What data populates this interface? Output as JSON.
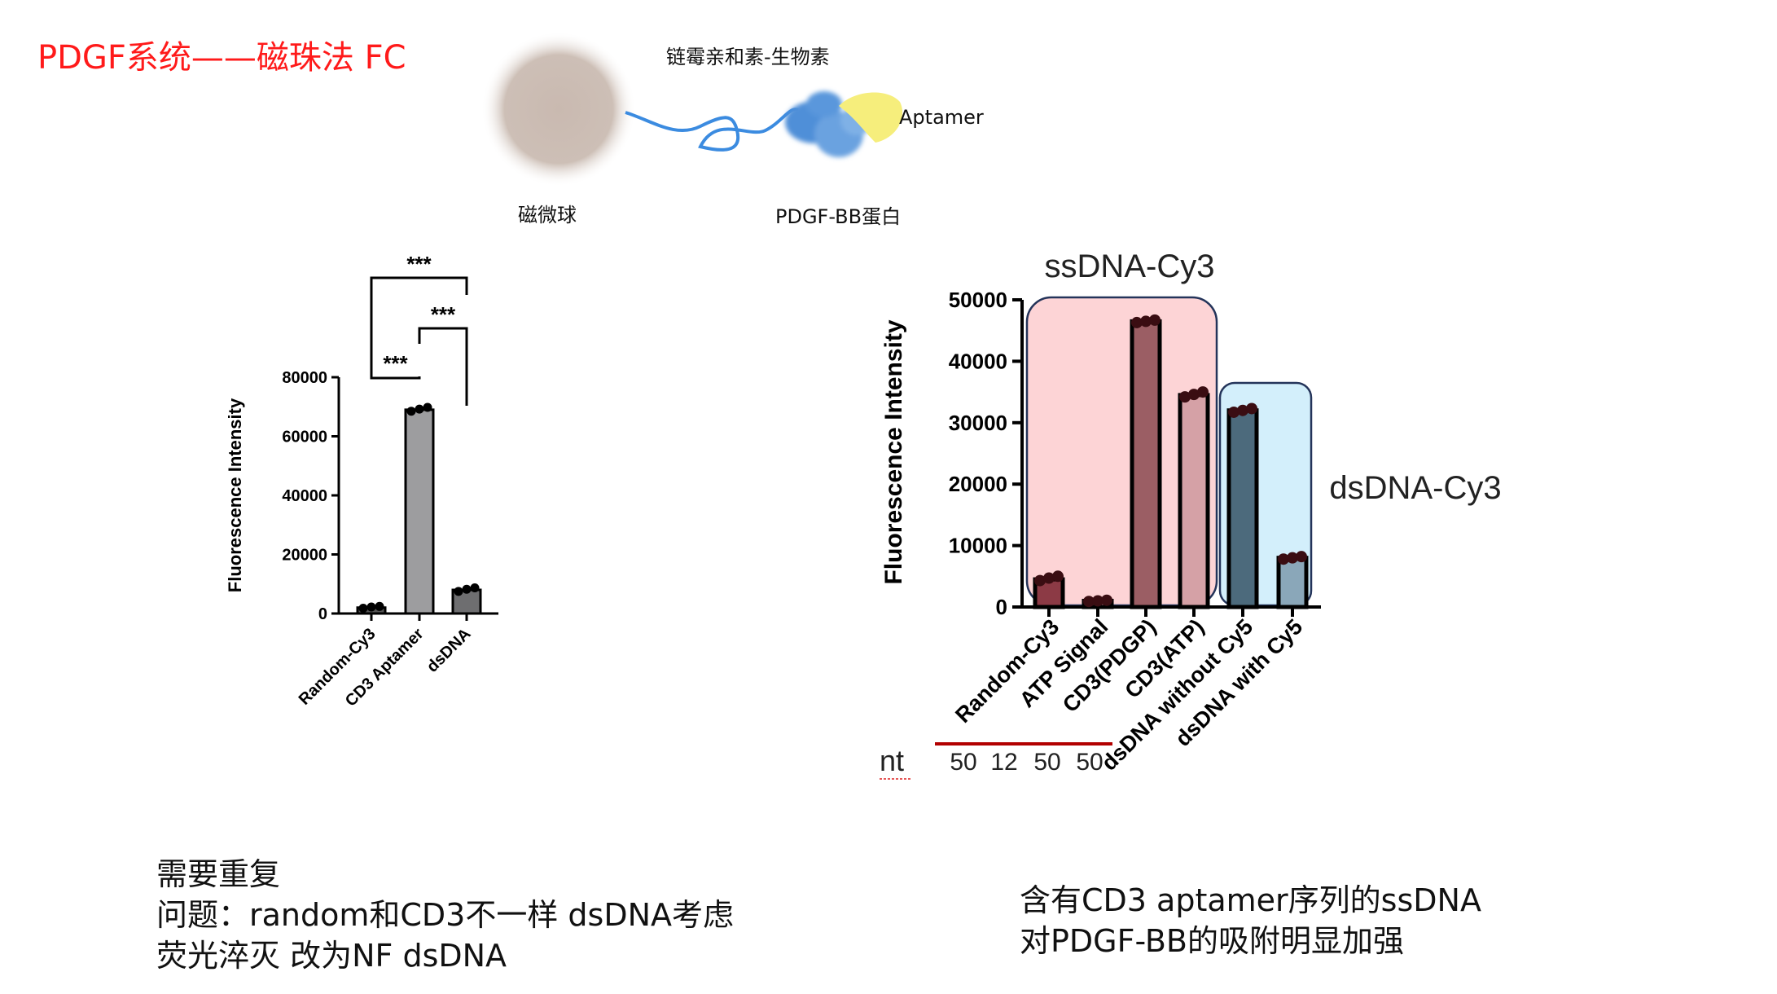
{
  "slide": {
    "title": "PDGF系统——磁珠法 FC",
    "diagram": {
      "label_streptavidin": "链霉亲和素-生物素",
      "label_aptamer": "Aptamer",
      "label_bead": "磁微球",
      "label_protein": "PDGF-BB蛋白"
    },
    "notes_left": [
      "需要重复",
      "问题：random和CD3不一样 dsDNA考虑",
      "荧光淬灭 改为NF dsDNA"
    ],
    "notes_right": [
      "含有CD3 aptamer序列的ssDNA",
      "对PDGF-BB的吸附明显加强"
    ]
  },
  "chart_data": [
    {
      "type": "bar",
      "title": "",
      "ylabel": "Fluorescence Intensity",
      "xlabel": "",
      "categories": [
        "Random-Cy3",
        "CD3 Aptamer",
        "dsDNA"
      ],
      "values": [
        2000,
        69000,
        8000
      ],
      "points": [
        [
          1800,
          2200,
          2400
        ],
        [
          68500,
          69200,
          69800
        ],
        [
          7500,
          8200,
          8700
        ]
      ],
      "colors": [
        "#555555",
        "#9d9d9f",
        "#6e6e70"
      ],
      "ylim": [
        0,
        80000
      ],
      "yticks": [
        0,
        20000,
        40000,
        60000,
        80000
      ],
      "significance": [
        {
          "from": 0,
          "to": 1,
          "label": "***"
        },
        {
          "from": 1,
          "to": 2,
          "label": "***"
        },
        {
          "from": 0,
          "to": 2,
          "label": "***"
        }
      ]
    },
    {
      "type": "bar",
      "title": "",
      "ylabel": "Fluorescence Intensity",
      "xlabel": "",
      "categories": [
        "Random-Cy3",
        "ATP Signal",
        "CD3(PDGP)",
        "CD3(ATP)",
        "dsDNA without Cy5",
        "dsDNA with Cy5"
      ],
      "values": [
        4500,
        1000,
        46500,
        34500,
        32000,
        8000
      ],
      "points": [
        [
          4300,
          4700,
          5000
        ],
        [
          900,
          1000,
          1100
        ],
        [
          46300,
          46500,
          46700
        ],
        [
          34200,
          34600,
          35000
        ],
        [
          31700,
          32000,
          32300
        ],
        [
          7800,
          8000,
          8200
        ]
      ],
      "colors": [
        "#8c3a45",
        "#b86f78",
        "#9b5e64",
        "#d5a1a6",
        "#4c6a7c",
        "#8aa7b9"
      ],
      "ylim": [
        0,
        50000
      ],
      "yticks": [
        0,
        10000,
        20000,
        30000,
        40000,
        50000
      ],
      "group_labels": [
        "ssDNA-Cy3",
        "dsDNA-Cy3"
      ],
      "group_fills": [
        "#fdd4d6",
        "#d3effb"
      ],
      "nt_label": "nt",
      "nt_values": [
        "50",
        "12",
        "50",
        "50"
      ]
    }
  ]
}
